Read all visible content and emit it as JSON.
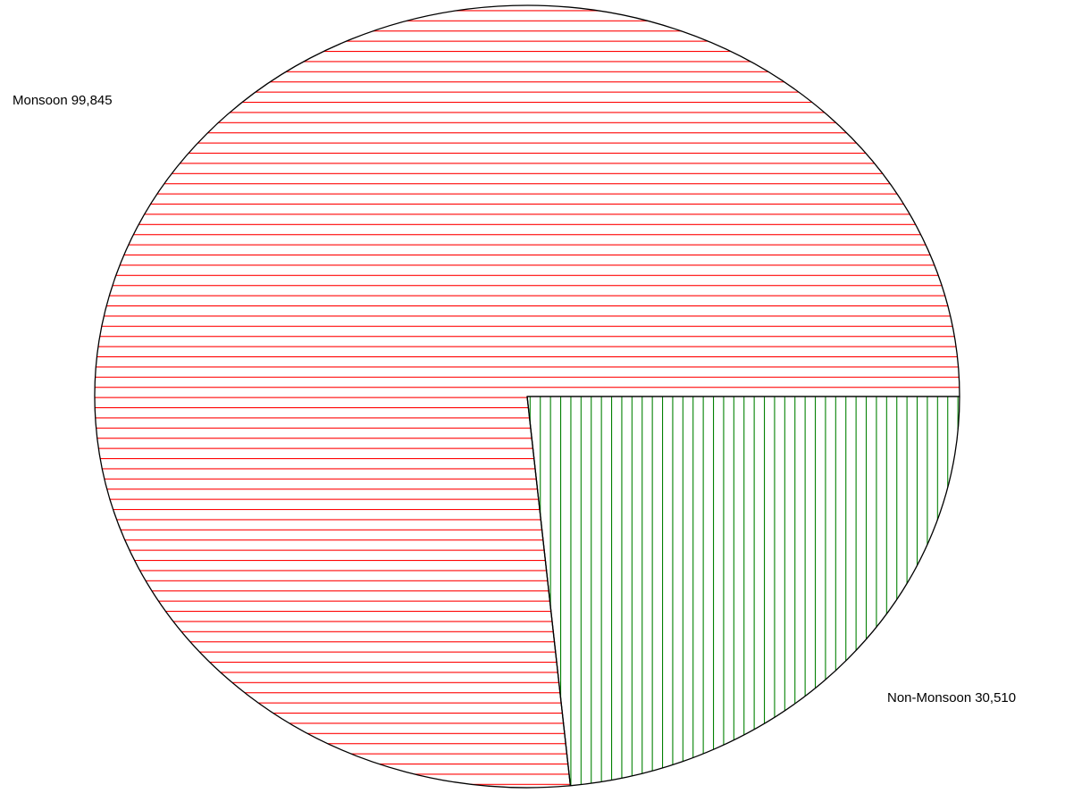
{
  "chart_data": {
    "type": "pie",
    "title": "",
    "slices": [
      {
        "label": "Monsoon",
        "value": 99845,
        "value_text": "99,845",
        "color": "#ff0000",
        "hatch": "horizontal"
      },
      {
        "label": "Non-Monsoon",
        "value": 30510,
        "value_text": "30,510",
        "color": "#008000",
        "hatch": "vertical"
      }
    ],
    "outline_color": "#000000",
    "legend": "none"
  }
}
